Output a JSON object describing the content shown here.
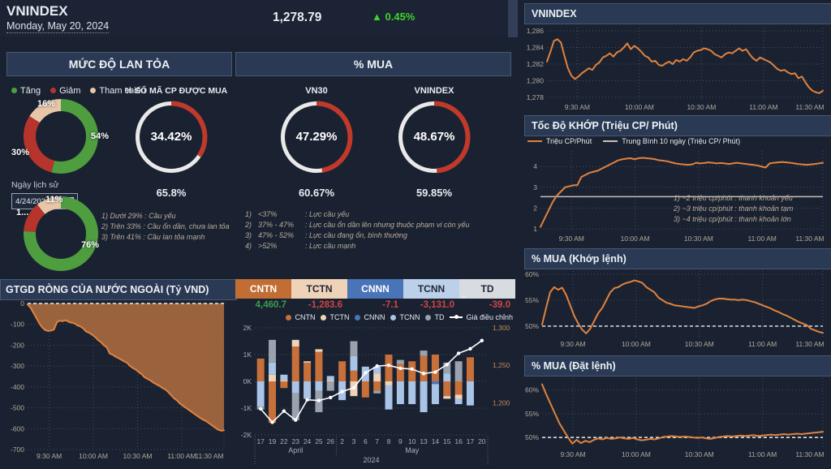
{
  "header": {
    "title": "VNINDEX",
    "date": "Monday, May 20, 2024",
    "value": "1,278.79",
    "change_icon": "▲",
    "change": "0.45%",
    "change_color": "#3fd42a"
  },
  "colors": {
    "up_green": "#4e9e40",
    "down_red": "#b7342c",
    "ref_tan": "#e8c6a8",
    "gauge_red": "#c0392b",
    "gauge_track": "#e9e9e9",
    "orange_line": "#e0823e",
    "area_fill": "#a5693f",
    "avg_line": "#cdbfb8",
    "white_line": "#ffffff"
  },
  "spread_panel": {
    "title": "MỨC ĐỘ LAN TỎA",
    "legend": [
      {
        "label": "Tăng",
        "color": "#4e9e40"
      },
      {
        "label": "Giảm",
        "color": "#b7342c"
      },
      {
        "label": "Tham chiếu",
        "color": "#e8c6a8"
      }
    ],
    "gauge_title": "% SỐ MÃ CP ĐƯỢC MUA",
    "gauge_value": "34.42%",
    "gauge_pct": 34.42,
    "gauge_secondary": "65.8%",
    "history_label": "Ngày lịch sử",
    "history_date": "4/24/2024",
    "donut_today": {
      "segments": [
        {
          "label": "54%",
          "value": 54,
          "color": "#4e9e40"
        },
        {
          "label": "30%",
          "value": 30,
          "color": "#b7342c"
        },
        {
          "label": "16%",
          "value": 16,
          "color": "#e8c6a8"
        }
      ]
    },
    "donut_history": {
      "segments": [
        {
          "label": "76%",
          "value": 76,
          "color": "#4e9e40"
        },
        {
          "label": "1...",
          "value": 13,
          "color": "#b7342c"
        },
        {
          "label": "11%",
          "value": 11,
          "color": "#e8c6a8"
        }
      ]
    },
    "notes": [
      "1) Dưới 29% : Cầu yếu",
      "2) Trên 33% : Cầu ổn dần, chưa lan tỏa",
      "3) Trên 41% : Cầu lan tỏa mạnh"
    ]
  },
  "mua_panel": {
    "title": "% MUA",
    "gauges": [
      {
        "name": "VN30",
        "value": "47.29%",
        "pct": 47.29,
        "secondary": "60.67%"
      },
      {
        "name": "VNINDEX",
        "value": "48.67%",
        "pct": 48.67,
        "secondary": "59.85%"
      }
    ],
    "notes": [
      {
        "num": "1)",
        "range": "<37%",
        "desc": ": Lực cầu yếu"
      },
      {
        "num": "2)",
        "range": "37% - 47%",
        "desc": ": Lực cầu ổn dần lên nhưng thuộc phạm vi còn yếu"
      },
      {
        "num": "3)",
        "range": "47% - 52%",
        "desc": ": Lực cầu đang ổn, bình thường"
      },
      {
        "num": "4)",
        "range": ">52%",
        "desc": ": Lực cầu mạnh"
      }
    ]
  },
  "tabs_panel": {
    "tabs": [
      {
        "label": "CNTN",
        "value": "4,460.7",
        "bg": "#c26d33",
        "fg": "#ffffff",
        "value_color": "#3a9e4e"
      },
      {
        "label": "TCTN",
        "value": "-1,283.6",
        "bg": "#eed3b8",
        "fg": "#1e2637",
        "value_color": "#cf4545"
      },
      {
        "label": "CNNN",
        "value": "-7.1",
        "bg": "#4a74b8",
        "fg": "#ffffff",
        "value_color": "#cf4545"
      },
      {
        "label": "TCNN",
        "value": "-3,131.0",
        "bg": "#bcd0ea",
        "fg": "#1e2637",
        "value_color": "#cf4545"
      },
      {
        "label": "TD",
        "value": "-39.0",
        "bg": "#d8dbe0",
        "fg": "#1e2637",
        "value_color": "#cf4545"
      }
    ],
    "sort_icon": "▲",
    "legend": [
      {
        "label": "CNTN",
        "color": "#c8703a"
      },
      {
        "label": "TCTN",
        "color": "#eed3b8"
      },
      {
        "label": "CNNN",
        "color": "#4a74b8"
      },
      {
        "label": "TCNN",
        "color": "#a9c4e6"
      },
      {
        "label": "TD",
        "color": "#9aa2ad"
      },
      {
        "label": "Giá điều chỉnh",
        "color": "#ffffff",
        "type": "line"
      }
    ]
  },
  "chart_data": [
    {
      "id": "foreign_flow",
      "type": "area",
      "title": "GTGD RÒNG CỦA NƯỚC NGOÀI (Tỷ VND)",
      "ylabel_ticks": [
        "0",
        "-100",
        "-200",
        "-300",
        "-400",
        "-500",
        "-600",
        "-700"
      ],
      "ylim": [
        -700,
        0
      ],
      "x_ticks": [
        "9:30 AM",
        "10:00 AM",
        "10:30 AM",
        "11:00 AM",
        "11:30 AM"
      ],
      "values": [
        -5,
        -20,
        -45,
        -70,
        -95,
        -115,
        -128,
        -132,
        -130,
        -125,
        -90,
        -82,
        -85,
        -80,
        -88,
        -92,
        -95,
        -105,
        -110,
        -120,
        -135,
        -140,
        -150,
        -160,
        -175,
        -185,
        -200,
        -210,
        -240,
        -245,
        -255,
        -262,
        -270,
        -278,
        -285,
        -300,
        -310,
        -318,
        -330,
        -340,
        -355,
        -362,
        -370,
        -380,
        -388,
        -395,
        -405,
        -412,
        -425,
        -440,
        -455,
        -465,
        -480,
        -490,
        -500,
        -510,
        -520,
        -530,
        -540,
        -550,
        -558,
        -565,
        -575,
        -585,
        -595,
        -605,
        -610,
        -608
      ]
    },
    {
      "id": "foreign_daily",
      "type": "stacked-bar-line",
      "categories": [
        "17",
        "19",
        "22",
        "23",
        "24",
        "25",
        "26",
        "2",
        "3",
        "6",
        "7",
        "8",
        "9",
        "10",
        "13",
        "14",
        "15",
        "16",
        "17",
        "20"
      ],
      "month_groups": [
        {
          "label": "April",
          "count": 7
        },
        {
          "label": "May",
          "count": 13
        }
      ],
      "year_label": "2024",
      "ylim": [
        -2000,
        2000
      ],
      "yticks_left": [
        "2K",
        "1K",
        "0K",
        "-1K",
        "-2K"
      ],
      "yticks_right": [
        {
          "label": "1,300",
          "v": 1300
        },
        {
          "label": "1,250",
          "v": 1250
        },
        {
          "label": "1,200",
          "v": 1200
        }
      ],
      "y2map": {
        "base": 1250,
        "at": 600,
        "per_point": 28
      },
      "series": [
        {
          "name": "CNTN",
          "color": "#c8703a",
          "values": [
            850,
            -1550,
            -250,
            1300,
            700,
            1100,
            0,
            750,
            400,
            -600,
            -350,
            1000,
            650,
            750,
            950,
            1000,
            -550,
            -500,
            900,
            0
          ]
        },
        {
          "name": "TCTN",
          "color": "#eed3b8",
          "values": [
            0,
            250,
            50,
            250,
            50,
            100,
            50,
            0,
            -550,
            0,
            300,
            -150,
            0,
            0,
            0,
            0,
            -100,
            -150,
            0,
            0
          ]
        },
        {
          "name": "CNNN",
          "color": "#4a74b8",
          "values": [
            0,
            0,
            0,
            0,
            0,
            0,
            0,
            0,
            0,
            0,
            0,
            0,
            0,
            0,
            0,
            -100,
            0,
            0,
            0,
            0
          ]
        },
        {
          "name": "TCNN",
          "color": "#a9c4e6",
          "values": [
            -950,
            450,
            200,
            -450,
            -650,
            -350,
            150,
            -700,
            550,
            550,
            250,
            -900,
            -850,
            -850,
            -1150,
            -750,
            300,
            -200,
            -900,
            0
          ]
        },
        {
          "name": "TD",
          "color": "#9aa2ad",
          "values": [
            -100,
            850,
            0,
            -1000,
            0,
            -800,
            -350,
            0,
            550,
            0,
            -100,
            0,
            150,
            0,
            200,
            0,
            400,
            750,
            0,
            0
          ]
        }
      ],
      "line": {
        "name": "Giá điều chỉnh",
        "color": "#ffffff",
        "values": [
          1192,
          1174,
          1189,
          1177,
          1204,
          1203,
          1207,
          1215,
          1220,
          1240,
          1249,
          1250,
          1246,
          1245,
          1239,
          1241,
          1251,
          1266,
          1272,
          1283
        ]
      }
    },
    {
      "id": "vnindex_intraday",
      "type": "line",
      "title": "VNINDEX",
      "ylabel_ticks": [
        "1,286",
        "1,284",
        "1,282",
        "1,280",
        "1,278"
      ],
      "ylim": [
        1277.6,
        1286.4
      ],
      "x_ticks": [
        "9:30 AM",
        "10:00 AM",
        "10:30 AM",
        "11:00 AM",
        "11:30 AM"
      ],
      "values": [
        1282.3,
        1283.5,
        1284.8,
        1285.0,
        1284.6,
        1283.0,
        1281.5,
        1280.6,
        1280.2,
        1280.5,
        1280.9,
        1281.2,
        1281.5,
        1281.3,
        1281.9,
        1282.2,
        1282.8,
        1283.0,
        1283.3,
        1282.9,
        1283.4,
        1283.6,
        1284.0,
        1284.5,
        1283.8,
        1284.2,
        1283.9,
        1283.5,
        1283.0,
        1282.8,
        1282.3,
        1282.4,
        1281.9,
        1281.8,
        1282.1,
        1282.3,
        1282.0,
        1282.5,
        1282.3,
        1282.6,
        1282.4,
        1282.8,
        1283.4,
        1283.6,
        1283.7,
        1283.9,
        1283.8,
        1283.6,
        1283.2,
        1283.0,
        1282.8,
        1283.2,
        1283.4,
        1283.3,
        1283.6,
        1283.9,
        1283.6,
        1283.8,
        1283.2,
        1282.7,
        1282.4,
        1282.8,
        1282.6,
        1282.4,
        1282.2,
        1281.8,
        1281.4,
        1281.2,
        1281.3,
        1281.0,
        1280.8,
        1280.9,
        1280.3,
        1280.5,
        1279.8,
        1279.2,
        1278.8,
        1278.6,
        1278.5,
        1278.8
      ]
    },
    {
      "id": "match_speed",
      "type": "line",
      "title": "Tốc Độ KHỚP (Triệu CP/ Phút)",
      "legend": [
        {
          "label": "Triệu CP/Phút",
          "color": "#e0823e"
        },
        {
          "label": "Trung Bình 10 ngày (Triệu CP/ Phút)",
          "color": "#cdbfb8"
        }
      ],
      "ylabel_ticks": [
        "4",
        "3",
        "2",
        "1"
      ],
      "ylim": [
        0.85,
        4.75
      ],
      "avg_value": 2.55,
      "x_ticks": [
        "9:30 AM",
        "10:00 AM",
        "10:30 AM",
        "11:00 AM",
        "11:30 AM"
      ],
      "annotations": [
        "1)  ~2 triệu cp/phút : thanh khoản yếu",
        "2)  ~3 triệu cp/phút : thanh khoản tạm",
        "3)  ~4 triệu cp/phút : thanh khoản lớn"
      ],
      "values": [
        1.1,
        1.5,
        1.9,
        2.3,
        2.6,
        2.8,
        3.0,
        3.05,
        3.1,
        3.1,
        3.5,
        3.6,
        3.7,
        3.75,
        3.8,
        3.9,
        4.0,
        4.1,
        4.2,
        4.3,
        4.35,
        4.38,
        4.4,
        4.35,
        4.4,
        4.42,
        4.4,
        4.38,
        4.35,
        4.3,
        4.28,
        4.25,
        4.2,
        4.15,
        4.12,
        4.1,
        4.08,
        4.1,
        4.18,
        4.15,
        4.17,
        4.2,
        4.18,
        4.15,
        4.17,
        4.15,
        4.12,
        4.15,
        4.18,
        4.15,
        4.13,
        4.1,
        4.08,
        4.05,
        4.0,
        3.95,
        4.15,
        4.18,
        4.2,
        4.22,
        4.2,
        4.18,
        4.15,
        4.12,
        4.1,
        4.08,
        4.1,
        4.12,
        4.15,
        4.18
      ]
    },
    {
      "id": "mua_khop",
      "type": "line",
      "title": "% MUA (Khớp lệnh)",
      "ylabel_ticks": [
        "60%",
        "55%",
        "50%"
      ],
      "ylim": [
        47.8,
        60.6
      ],
      "ref_value": 50,
      "x_ticks": [
        "9:30 AM",
        "10:00 AM",
        "10:30 AM",
        "11:00 AM",
        "11:30 AM"
      ],
      "values": [
        50.3,
        53.5,
        56.5,
        57.5,
        57.0,
        57.4,
        56.0,
        54.0,
        52.0,
        50.5,
        49.3,
        48.6,
        49.5,
        51.0,
        52.5,
        53.5,
        55.0,
        56.5,
        57.3,
        57.5,
        58.0,
        58.3,
        58.5,
        58.8,
        58.6,
        58.3,
        57.5,
        57.0,
        56.5,
        55.5,
        55.0,
        54.5,
        54.3,
        54.0,
        53.9,
        53.8,
        53.7,
        53.6,
        53.5,
        53.8,
        54.0,
        54.3,
        54.8,
        55.1,
        55.3,
        55.3,
        55.2,
        55.1,
        55.1,
        55.0,
        55.1,
        55.0,
        54.8,
        54.6,
        54.3,
        54.0,
        53.7,
        53.4,
        53.0,
        52.7,
        52.3,
        52.0,
        51.6,
        51.2,
        50.8,
        50.5,
        50.2,
        49.5,
        49.2,
        48.9,
        48.7
      ]
    },
    {
      "id": "mua_dat",
      "type": "line",
      "title": "% MUA (Đặt lệnh)",
      "ylabel_ticks": [
        "60%",
        "55%",
        "50%"
      ],
      "ylim": [
        47.8,
        62.5
      ],
      "ref_value": 50,
      "x_ticks": [
        "9:30 AM",
        "10:00 AM",
        "10:30 AM",
        "11:00 AM",
        "11:30 AM"
      ],
      "values": [
        61.2,
        59.0,
        57.0,
        55.0,
        53.0,
        51.5,
        50.0,
        48.7,
        49.5,
        48.8,
        49.3,
        49.0,
        49.5,
        49.8,
        49.6,
        49.9,
        49.7,
        49.8,
        50.0,
        49.8,
        49.7,
        49.9,
        49.6,
        49.4,
        49.5,
        49.7,
        49.6,
        49.8,
        50.1,
        50.2,
        50.3,
        50.2,
        50.1,
        50.2,
        50.1,
        50.0,
        49.9,
        50.0,
        49.8,
        49.7,
        49.9,
        50.1,
        50.2,
        50.3,
        50.2,
        50.3,
        50.4,
        50.3,
        50.4,
        50.5,
        50.3,
        50.4,
        50.5,
        50.6,
        50.5,
        50.6,
        50.7,
        50.6,
        50.7,
        50.8,
        50.7,
        50.8,
        50.9,
        51.0,
        51.1,
        51.2
      ]
    }
  ]
}
